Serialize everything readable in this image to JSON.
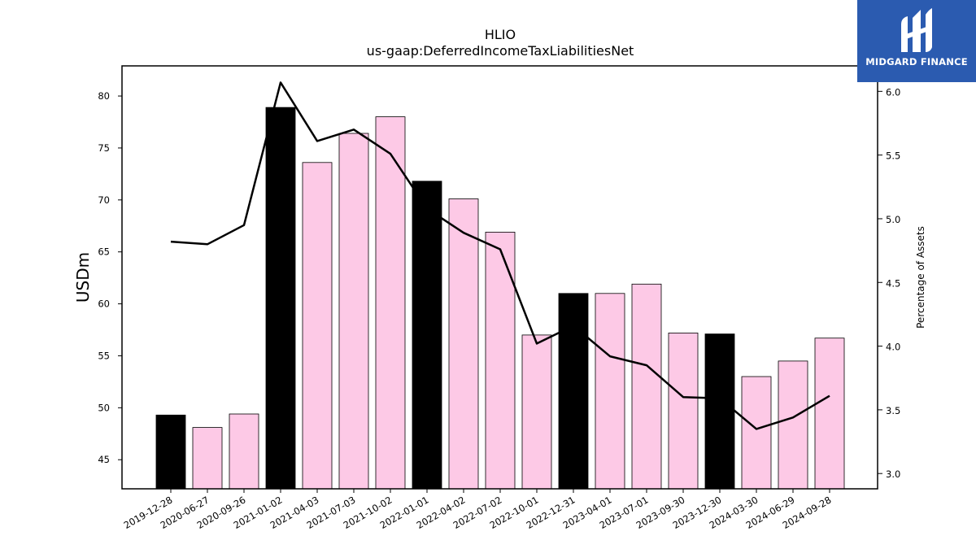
{
  "chart_data": {
    "type": "bar",
    "title": "HLIO",
    "subtitle": "us-gaap:DeferredIncomeTaxLiabilitiesNet",
    "ylabel": "USDm",
    "ylabel_right": "Percentage of Assets",
    "ylim": [
      42.2,
      82.9
    ],
    "ylim_right": [
      2.88,
      6.2
    ],
    "yticks": [
      45,
      50,
      55,
      60,
      65,
      70,
      75,
      80
    ],
    "yticks_right": [
      3.0,
      3.5,
      4.0,
      4.5,
      5.0,
      5.5,
      6.0
    ],
    "grid": false,
    "categories": [
      "2019-12-28",
      "2020-06-27",
      "2020-09-26",
      "2021-01-02",
      "2021-04-03",
      "2021-07-03",
      "2021-10-02",
      "2022-01-01",
      "2022-04-02",
      "2022-07-02",
      "2022-10-01",
      "2022-12-31",
      "2023-04-01",
      "2023-07-01",
      "2023-09-30",
      "2023-12-30",
      "2024-03-30",
      "2024-06-29",
      "2024-09-28"
    ],
    "series": [
      {
        "type": "bar",
        "axis": "left",
        "values": [
          49.3,
          48.1,
          49.4,
          78.9,
          73.6,
          76.4,
          78.0,
          71.8,
          70.1,
          66.9,
          57.0,
          61.0,
          61.0,
          61.9,
          57.2,
          57.1,
          53.0,
          54.5,
          56.7
        ],
        "highlight": [
          true,
          false,
          false,
          true,
          false,
          false,
          false,
          true,
          false,
          false,
          false,
          true,
          false,
          false,
          false,
          true,
          false,
          false,
          false
        ]
      },
      {
        "type": "line",
        "axis": "right",
        "values": [
          4.82,
          4.8,
          4.95,
          6.07,
          5.61,
          5.7,
          5.51,
          5.08,
          4.89,
          4.76,
          4.02,
          4.16,
          3.92,
          3.85,
          3.6,
          3.59,
          3.35,
          3.44,
          3.61
        ]
      }
    ],
    "colors": {
      "bar_fill": "#fdc9e6",
      "bar_highlight": "#000000",
      "bar_edge": "#000000",
      "line": "#000000",
      "background": "#ffffff"
    }
  },
  "logo": {
    "text": "MIDGARD FINANCE",
    "icon": "midgard-logo-icon",
    "color": "#2b5bb0"
  }
}
